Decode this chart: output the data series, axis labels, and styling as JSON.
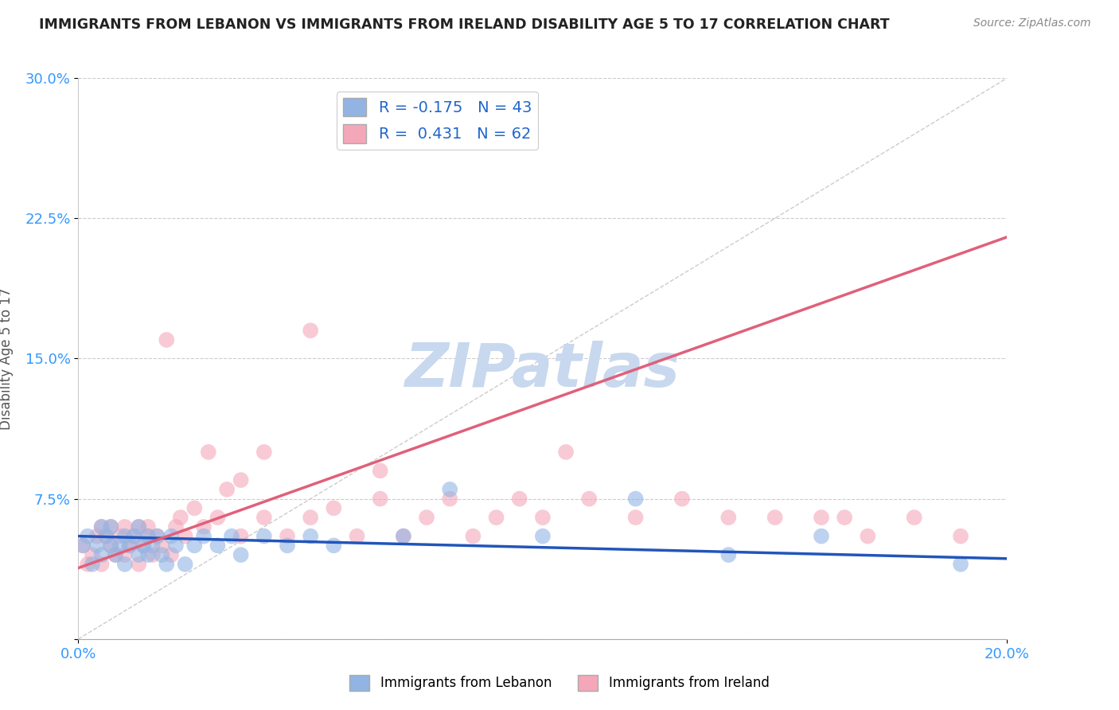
{
  "title": "IMMIGRANTS FROM LEBANON VS IMMIGRANTS FROM IRELAND DISABILITY AGE 5 TO 17 CORRELATION CHART",
  "source": "Source: ZipAtlas.com",
  "ylabel": "Disability Age 5 to 17",
  "xlim": [
    0.0,
    0.2
  ],
  "ylim": [
    0.0,
    0.3
  ],
  "yticks": [
    0.0,
    0.075,
    0.15,
    0.225,
    0.3
  ],
  "yticklabels": [
    "",
    "7.5%",
    "15.0%",
    "22.5%",
    "30.0%"
  ],
  "background_color": "#ffffff",
  "grid_color": "#cccccc",
  "lebanon_color": "#92b4e3",
  "ireland_color": "#f4a7b9",
  "lebanon_line_color": "#2255bb",
  "ireland_line_color": "#e0607a",
  "lebanon_R": -0.175,
  "lebanon_N": 43,
  "ireland_R": 0.431,
  "ireland_N": 62,
  "lebanon_scatter_x": [
    0.001,
    0.002,
    0.003,
    0.004,
    0.005,
    0.005,
    0.006,
    0.007,
    0.007,
    0.008,
    0.009,
    0.01,
    0.01,
    0.011,
    0.012,
    0.013,
    0.013,
    0.014,
    0.015,
    0.015,
    0.016,
    0.017,
    0.018,
    0.019,
    0.02,
    0.021,
    0.023,
    0.025,
    0.027,
    0.03,
    0.033,
    0.035,
    0.04,
    0.045,
    0.05,
    0.055,
    0.07,
    0.08,
    0.1,
    0.12,
    0.14,
    0.16,
    0.19
  ],
  "lebanon_scatter_y": [
    0.05,
    0.055,
    0.04,
    0.05,
    0.045,
    0.06,
    0.055,
    0.05,
    0.06,
    0.045,
    0.05,
    0.055,
    0.04,
    0.05,
    0.055,
    0.045,
    0.06,
    0.05,
    0.055,
    0.045,
    0.05,
    0.055,
    0.045,
    0.04,
    0.055,
    0.05,
    0.04,
    0.05,
    0.055,
    0.05,
    0.055,
    0.045,
    0.055,
    0.05,
    0.055,
    0.05,
    0.055,
    0.08,
    0.055,
    0.075,
    0.045,
    0.055,
    0.04
  ],
  "ireland_scatter_x": [
    0.001,
    0.002,
    0.003,
    0.004,
    0.005,
    0.005,
    0.006,
    0.007,
    0.007,
    0.008,
    0.009,
    0.01,
    0.01,
    0.011,
    0.012,
    0.013,
    0.013,
    0.014,
    0.015,
    0.015,
    0.016,
    0.017,
    0.018,
    0.019,
    0.02,
    0.021,
    0.022,
    0.023,
    0.025,
    0.027,
    0.028,
    0.03,
    0.032,
    0.035,
    0.035,
    0.04,
    0.04,
    0.045,
    0.05,
    0.05,
    0.055,
    0.06,
    0.065,
    0.065,
    0.07,
    0.075,
    0.08,
    0.085,
    0.09,
    0.095,
    0.1,
    0.105,
    0.11,
    0.12,
    0.13,
    0.14,
    0.15,
    0.16,
    0.165,
    0.17,
    0.18,
    0.19
  ],
  "ireland_scatter_y": [
    0.05,
    0.04,
    0.045,
    0.055,
    0.04,
    0.06,
    0.055,
    0.05,
    0.06,
    0.045,
    0.055,
    0.045,
    0.06,
    0.05,
    0.055,
    0.04,
    0.06,
    0.05,
    0.055,
    0.06,
    0.045,
    0.055,
    0.05,
    0.16,
    0.045,
    0.06,
    0.065,
    0.055,
    0.07,
    0.06,
    0.1,
    0.065,
    0.08,
    0.055,
    0.085,
    0.065,
    0.1,
    0.055,
    0.065,
    0.165,
    0.07,
    0.055,
    0.075,
    0.09,
    0.055,
    0.065,
    0.075,
    0.055,
    0.065,
    0.075,
    0.065,
    0.1,
    0.075,
    0.065,
    0.075,
    0.065,
    0.065,
    0.065,
    0.065,
    0.055,
    0.065,
    0.055
  ],
  "watermark_text": "ZIPatlas",
  "watermark_color": "#c8d8ee"
}
